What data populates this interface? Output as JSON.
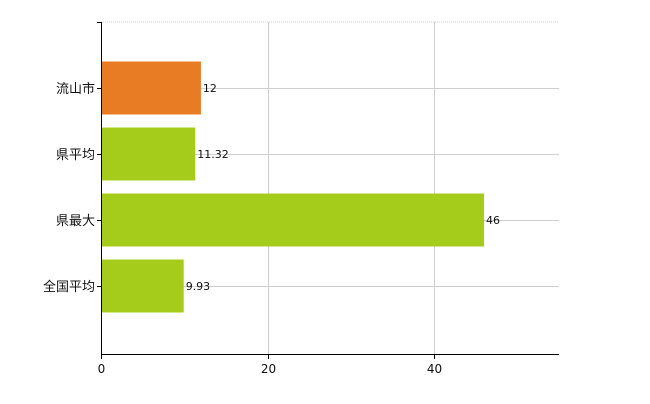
{
  "chart_data": {
    "type": "bar",
    "orientation": "horizontal",
    "categories": [
      "流山市",
      "県平均",
      "県最大",
      "全国平均"
    ],
    "values": [
      12,
      11.32,
      46,
      9.93
    ],
    "data_labels": [
      "12",
      "11.32",
      "46",
      "9.93"
    ],
    "highlight_index": 0,
    "xlim": [
      0,
      55
    ],
    "xticks": [
      0,
      20,
      40
    ],
    "grid": true,
    "legend": "none",
    "title": "",
    "xlabel": "",
    "ylabel": ""
  },
  "colors": {
    "highlight": "#e87c25",
    "bar": "#a5cc1a",
    "grid": "#cfcfcf",
    "axis": "#000000"
  }
}
